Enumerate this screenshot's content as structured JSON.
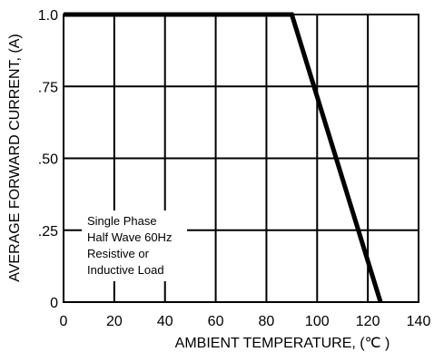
{
  "chart_data": {
    "type": "line",
    "title": "",
    "xlabel": "AMBIENT TEMPERATURE, (℃ )",
    "ylabel": "AVERAGE FORWARD CURRENT, (A)",
    "xlim": [
      0,
      140
    ],
    "ylim": [
      0,
      1.0
    ],
    "x_ticks": [
      0,
      20,
      40,
      60,
      80,
      100,
      120,
      140
    ],
    "x_tick_labels": [
      "0",
      "20",
      "40",
      "60",
      "80",
      "100",
      "120",
      "140"
    ],
    "y_ticks": [
      0,
      0.25,
      0.5,
      0.75,
      1.0
    ],
    "y_tick_labels": [
      "0",
      ".25",
      ".50",
      ".75",
      "1.0"
    ],
    "grid": true,
    "series": [
      {
        "x": [
          0,
          90,
          125
        ],
        "y": [
          1.0,
          1.0,
          0.0
        ]
      }
    ],
    "annotation": [
      "Single Phase",
      "Half Wave 60Hz",
      "Resistive or",
      "Inductive Load"
    ]
  }
}
